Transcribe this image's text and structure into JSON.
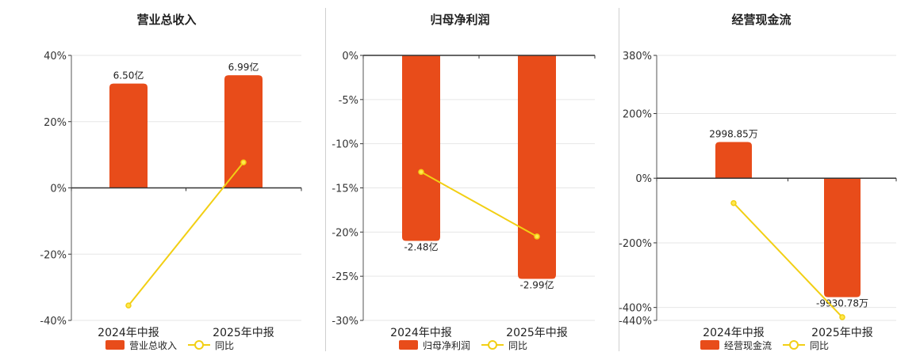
{
  "colors": {
    "bar": "#E84C1A",
    "line": "#F2CF14",
    "point_fill": "#FFE84D",
    "grid": "#E6E6E6",
    "axis": "#333333",
    "text": "#333333"
  },
  "legend": {
    "line_label": "同比"
  },
  "chart_data": [
    {
      "type": "bar",
      "title": "营业总收入",
      "categories": [
        "2024年中报",
        "2025年中报"
      ],
      "series": [
        {
          "name": "营业总收入",
          "type": "bar",
          "values": [
            31.5,
            34
          ],
          "labels": [
            "6.50亿",
            "6.99亿"
          ]
        },
        {
          "name": "同比",
          "type": "line",
          "values": [
            -35.5,
            7.7
          ]
        }
      ],
      "yticks": [
        40,
        20,
        0,
        -20,
        -40
      ],
      "ylim": [
        -40,
        40
      ],
      "y_format": "percent"
    },
    {
      "type": "bar",
      "title": "归母净利润",
      "categories": [
        "2024年中报",
        "2025年中报"
      ],
      "series": [
        {
          "name": "归母净利润",
          "type": "bar",
          "values": [
            -21,
            -25.3
          ],
          "labels": [
            "-2.48亿",
            "-2.99亿"
          ]
        },
        {
          "name": "同比",
          "type": "line",
          "values": [
            -13.2,
            -20.5
          ]
        }
      ],
      "yticks": [
        0,
        -5,
        -10,
        -15,
        -20,
        -25,
        -30
      ],
      "ylim": [
        -30,
        0
      ],
      "y_format": "percent"
    },
    {
      "type": "bar",
      "title": "经营现金流",
      "categories": [
        "2024年中报",
        "2025年中报"
      ],
      "series": [
        {
          "name": "经营现金流",
          "type": "bar",
          "values": [
            112,
            -368
          ],
          "labels": [
            "2998.85万",
            "-9930.78万"
          ]
        },
        {
          "name": "同比",
          "type": "line",
          "values": [
            -77,
            -430
          ]
        }
      ],
      "yticks": [
        380,
        200,
        0,
        -200,
        -400,
        -440
      ],
      "ylim": [
        -440,
        380
      ],
      "y_format": "percent"
    }
  ]
}
